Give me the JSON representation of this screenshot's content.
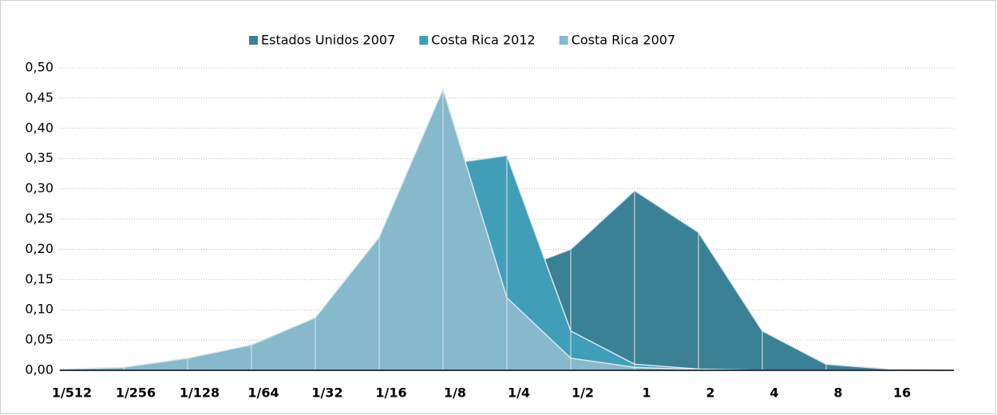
{
  "chart_data": {
    "type": "area",
    "categories": [
      "1/512",
      "1/256",
      "1/128",
      "1/64",
      "1/32",
      "1/16",
      "1/8",
      "1/4",
      "1/2",
      "1",
      "2",
      "4",
      "8",
      "16",
      null
    ],
    "series": [
      {
        "name": "Estados Unidos 2007",
        "color": "#3b8196",
        "values": [
          0,
          0,
          0.002,
          0.005,
          0.01,
          0.03,
          0.08,
          0.16,
          0.2,
          0.297,
          0.228,
          0.065,
          0.01,
          0.002,
          0
        ]
      },
      {
        "name": "Costa Rica 2012",
        "color": "#409eb8",
        "values": [
          0.001,
          0.003,
          0.015,
          0.035,
          0.08,
          0.2,
          0.34,
          0.355,
          0.065,
          0.01,
          0.002,
          0,
          0,
          0,
          0
        ]
      },
      {
        "name": "Costa Rica 2007",
        "color": "#86b9cc",
        "values": [
          0.002,
          0.005,
          0.02,
          0.042,
          0.087,
          0.22,
          0.465,
          0.12,
          0.02,
          0.005,
          0.001,
          0,
          0,
          0,
          0
        ]
      }
    ],
    "ylim": [
      0,
      0.5
    ],
    "yticks": [
      {
        "value": 0,
        "label": "0,00"
      },
      {
        "value": 0.05,
        "label": "0,05"
      },
      {
        "value": 0.1,
        "label": "0,10"
      },
      {
        "value": 0.15,
        "label": "0,15"
      },
      {
        "value": 0.2,
        "label": "0,20"
      },
      {
        "value": 0.25,
        "label": "0,25"
      },
      {
        "value": 0.3,
        "label": "0,30"
      },
      {
        "value": 0.35,
        "label": "0,35"
      },
      {
        "value": 0.4,
        "label": "0,40"
      },
      {
        "value": 0.45,
        "label": "0,45"
      },
      {
        "value": 0.5,
        "label": "0,50"
      }
    ],
    "grid": true,
    "legend": "top"
  }
}
